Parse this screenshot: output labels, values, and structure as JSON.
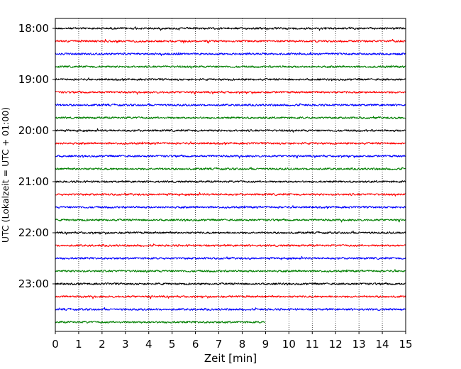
{
  "chart_data": {
    "type": "line",
    "title": "",
    "xlabel": "Zeit  [min]",
    "ylabel": "UTC (Lokalzeit = UTC + 01:00)",
    "xlim": [
      0,
      15
    ],
    "x_ticks": [
      0,
      1,
      2,
      3,
      4,
      5,
      6,
      7,
      8,
      9,
      10,
      11,
      12,
      13,
      14,
      15
    ],
    "x_tick_labels": [
      "0",
      "1",
      "2",
      "3",
      "4",
      "5",
      "6",
      "7",
      "8",
      "9",
      "10",
      "11",
      "12",
      "13",
      "14",
      "15"
    ],
    "y_tick_labels": [
      "18:00",
      "19:00",
      "20:00",
      "21:00",
      "22:00",
      "23:00"
    ],
    "vertical_grid": "dotted",
    "color_cycle": [
      "#000000",
      "#ff0000",
      "#0000ff",
      "#007f00"
    ],
    "traces": [
      {
        "start": "18:00",
        "duration_min": 15,
        "color": "#000000"
      },
      {
        "start": "18:15",
        "duration_min": 15,
        "color": "#ff0000"
      },
      {
        "start": "18:30",
        "duration_min": 15,
        "color": "#0000ff"
      },
      {
        "start": "18:45",
        "duration_min": 15,
        "color": "#007f00"
      },
      {
        "start": "19:00",
        "duration_min": 15,
        "color": "#000000"
      },
      {
        "start": "19:15",
        "duration_min": 15,
        "color": "#ff0000"
      },
      {
        "start": "19:30",
        "duration_min": 15,
        "color": "#0000ff"
      },
      {
        "start": "19:45",
        "duration_min": 15,
        "color": "#007f00"
      },
      {
        "start": "20:00",
        "duration_min": 15,
        "color": "#000000"
      },
      {
        "start": "20:15",
        "duration_min": 15,
        "color": "#ff0000"
      },
      {
        "start": "20:30",
        "duration_min": 15,
        "color": "#0000ff"
      },
      {
        "start": "20:45",
        "duration_min": 15,
        "color": "#007f00"
      },
      {
        "start": "21:00",
        "duration_min": 15,
        "color": "#000000"
      },
      {
        "start": "21:15",
        "duration_min": 15,
        "color": "#ff0000"
      },
      {
        "start": "21:30",
        "duration_min": 15,
        "color": "#0000ff"
      },
      {
        "start": "21:45",
        "duration_min": 15,
        "color": "#007f00"
      },
      {
        "start": "22:00",
        "duration_min": 15,
        "color": "#000000"
      },
      {
        "start": "22:15",
        "duration_min": 15,
        "color": "#ff0000"
      },
      {
        "start": "22:30",
        "duration_min": 15,
        "color": "#0000ff"
      },
      {
        "start": "22:45",
        "duration_min": 15,
        "color": "#007f00"
      },
      {
        "start": "23:00",
        "duration_min": 15,
        "color": "#000000"
      },
      {
        "start": "23:15",
        "duration_min": 15,
        "color": "#ff0000"
      },
      {
        "start": "23:30",
        "duration_min": 15,
        "color": "#0000ff"
      },
      {
        "start": "23:45",
        "duration_min": 9,
        "color": "#007f00"
      }
    ]
  }
}
